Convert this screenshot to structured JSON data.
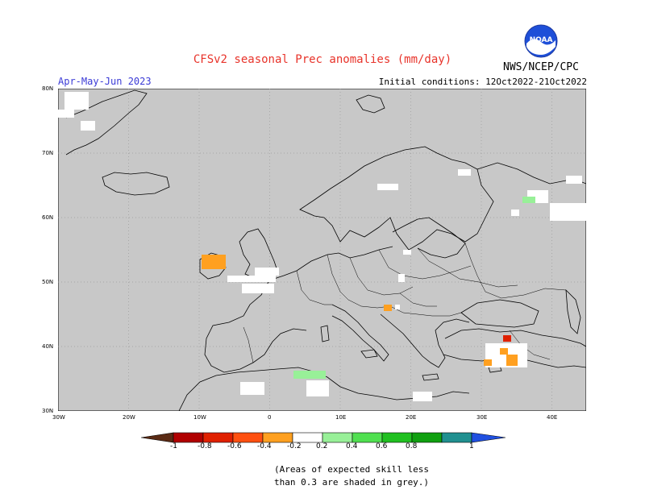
{
  "header": {
    "title": "CFSv2 seasonal Prec anomalies (mm/day)",
    "period": "Apr-May-Jun 2023",
    "initial_conditions": "Initial conditions: 12Oct2022-21Oct2022",
    "agency": "NWS/NCEP/CPC",
    "logo_text": "NOAA"
  },
  "map": {
    "background_color": "#c8c8c8",
    "lat_labels": [
      "80N",
      "70N",
      "60N",
      "50N",
      "40N",
      "30N"
    ],
    "lon_labels": [
      "30W",
      "20W",
      "10W",
      "0",
      "10E",
      "20E",
      "30E",
      "40E"
    ]
  },
  "colorbar": {
    "labels": [
      "-1",
      "-0.8",
      "-0.6",
      "-0.4",
      "-0.2",
      "0.2",
      "0.4",
      "0.6",
      "0.8",
      "1"
    ],
    "colors": [
      "#5a2a14",
      "#b00000",
      "#e02000",
      "#ff5010",
      "#ffa020",
      "#ffffff",
      "#98f098",
      "#50e050",
      "#20c020",
      "#10a010",
      "#209090",
      "#2050e0"
    ]
  },
  "note": {
    "line1": "(Areas of expected skill less",
    "line2": "than 0.3 are shaded in grey.)"
  }
}
